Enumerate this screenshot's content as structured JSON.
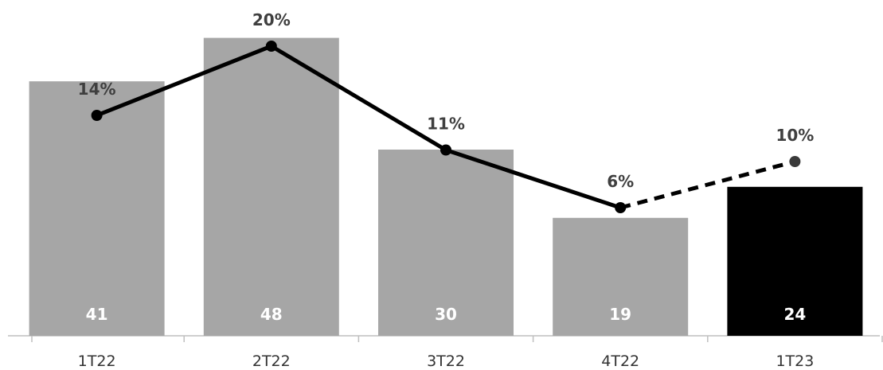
{
  "chart_data": {
    "type": "bar",
    "categories": [
      "1T22",
      "2T22",
      "3T22",
      "4T22",
      "1T23"
    ],
    "series": [
      {
        "type": "bar",
        "values": [
          41,
          48,
          30,
          19,
          24
        ],
        "labels": [
          "41",
          "48",
          "30",
          "19",
          "24"
        ],
        "colors": [
          "#a6a6a6",
          "#a6a6a6",
          "#a6a6a6",
          "#a6a6a6",
          "#000000"
        ]
      },
      {
        "type": "line",
        "values": [
          14,
          20,
          11,
          6,
          10
        ],
        "labels": [
          "14%",
          "20%",
          "11%",
          "6%",
          "10%"
        ],
        "unit": "%",
        "color": "#000000",
        "dashed_last_segment": true
      }
    ],
    "title": "",
    "xlabel": "",
    "ylabel": "",
    "grid": false,
    "legend": "none"
  }
}
